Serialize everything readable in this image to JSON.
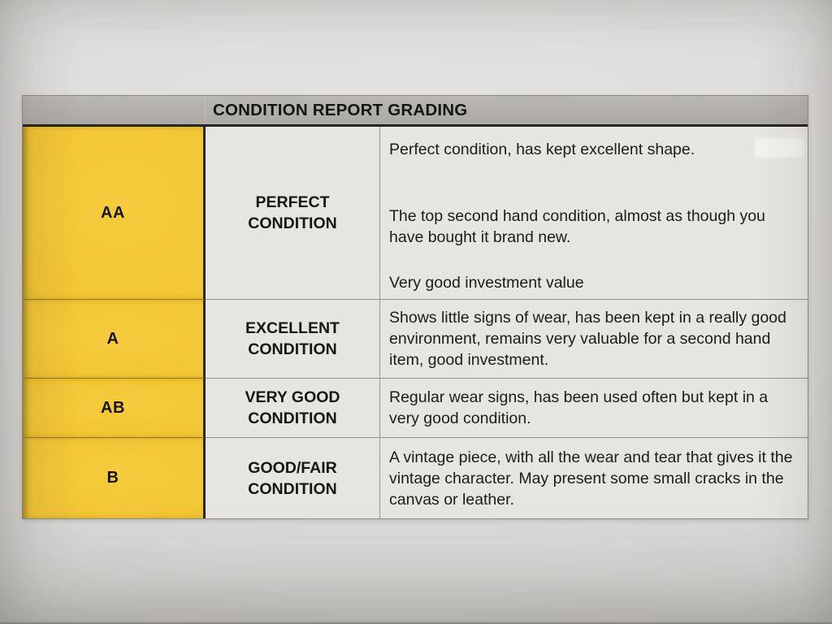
{
  "table": {
    "title": "CONDITION REPORT GRADING",
    "colors": {
      "grade_column_yellow": "#f1c533",
      "header_bar_gray": "#b2aeaa",
      "cell_background": "#e7e5e1",
      "text": "#1c1b19"
    },
    "rows": [
      {
        "grade": "AA",
        "name_line1": "PERFECT",
        "name_line2": "CONDITION",
        "paragraphs": [
          "Perfect condition, has kept excellent shape.",
          "The top second hand condition, almost as though you have bought it brand new.",
          "Very good investment value"
        ]
      },
      {
        "grade": "A",
        "name_line1": "EXCELLENT",
        "name_line2": "CONDITION",
        "paragraphs": [
          "Shows little signs of wear, has been kept in a really good environment, remains very valuable for a second hand item, good investment."
        ]
      },
      {
        "grade": "AB",
        "name_line1": "VERY GOOD",
        "name_line2": "CONDITION",
        "paragraphs": [
          "Regular wear signs, has been used often but kept in a very good condition."
        ]
      },
      {
        "grade": "B",
        "name_line1": "GOOD/FAIR",
        "name_line2": "CONDITION",
        "paragraphs": [
          "A vintage piece, with all the wear and tear that gives it the vintage character. May present some small cracks in the canvas or leather."
        ]
      }
    ]
  }
}
